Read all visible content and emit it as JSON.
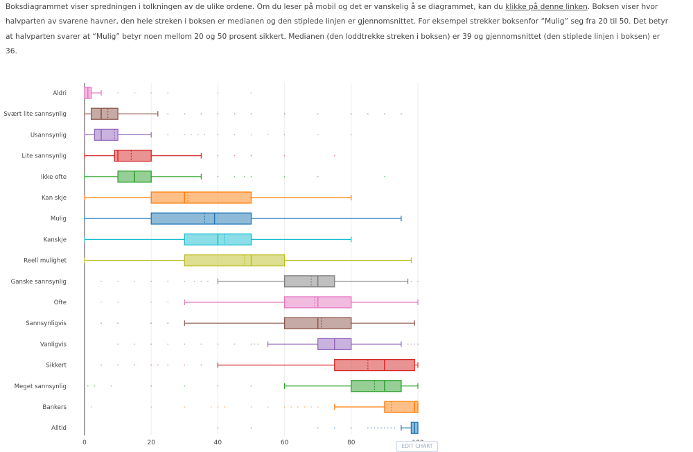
{
  "intro": {
    "text_before_link": "Boksdiagrammet viser spredningen i tolkningen av de ulike ordene. Om du leser på mobil og det er vanskelig å se diagrammet, kan du ",
    "link_text": "klikke på denne linken",
    "text_after_link": ". Boksen viser hvor halvparten av svarene havner, den hele streken i boksen er medianen og den stiplede linjen er gjennomsnittet.  For eksempel strekker boksenfor “Mulig” seg fra 20 til 50. Det betyr at halvparten svarer at “Mulig” betyr noen mellom 20 og 50 prosent sikkert. Medianen (den loddtrekke streken i boksen) er 39 og gjennomsnittet (den stiplede linjen i boksen) er 36."
  },
  "edit_button": "EDIT CHART",
  "chart_data": {
    "type": "box",
    "orientation": "horizontal",
    "xlim": [
      0,
      100
    ],
    "xticks": [
      0,
      20,
      40,
      60,
      80,
      100
    ],
    "grid": true,
    "series": [
      {
        "name": "Aldri",
        "color": "#e377c2",
        "min": 0,
        "q1": 0,
        "median": 1,
        "mean": 2,
        "q3": 2,
        "max": 5,
        "outliers": [
          10,
          15,
          20,
          25,
          40,
          50
        ]
      },
      {
        "name": "Svært lite sannsynlig",
        "color": "#8c564b",
        "min": 0,
        "q1": 2,
        "median": 5,
        "mean": 7,
        "q3": 10,
        "max": 22,
        "outliers": [
          25,
          30,
          35,
          40,
          45,
          50,
          60,
          70,
          80,
          85,
          90,
          95
        ]
      },
      {
        "name": "Usannsynlig",
        "color": "#9467bd",
        "min": 0,
        "q1": 3,
        "median": 5,
        "mean": 9,
        "q3": 10,
        "max": 20,
        "outliers": [
          25,
          30,
          32,
          34,
          36,
          40,
          45,
          50,
          55,
          60,
          70,
          80
        ]
      },
      {
        "name": "Lite sannsynlig",
        "color": "#d62728",
        "min": 0,
        "q1": 9,
        "median": 10,
        "mean": 14,
        "q3": 20,
        "max": 35,
        "outliers": [
          40,
          45,
          50,
          60,
          75
        ]
      },
      {
        "name": "Ikke ofte",
        "color": "#2ca02c",
        "min": 0,
        "q1": 10,
        "median": 15,
        "mean": 15,
        "q3": 20,
        "max": 35,
        "outliers": [
          40,
          45,
          48,
          50,
          60,
          70,
          90
        ]
      },
      {
        "name": "Kan skje",
        "color": "#ff7f0e",
        "min": 0,
        "q1": 20,
        "median": 30,
        "mean": 31,
        "q3": 50,
        "max": 80,
        "outliers": []
      },
      {
        "name": "Mulig",
        "color": "#1f77b4",
        "min": 0,
        "q1": 20,
        "median": 39,
        "mean": 36,
        "q3": 50,
        "max": 95,
        "outliers": []
      },
      {
        "name": "Kanskje",
        "color": "#17becf",
        "min": 0,
        "q1": 30,
        "median": 40,
        "mean": 42,
        "q3": 50,
        "max": 80,
        "outliers": []
      },
      {
        "name": "Reell mulighet",
        "color": "#bcbd22",
        "min": 0,
        "q1": 30,
        "median": 50,
        "mean": 48,
        "q3": 60,
        "max": 98,
        "outliers": []
      },
      {
        "name": "Ganske sannsynlig",
        "color": "#7f7f7f",
        "min": 40,
        "q1": 60,
        "median": 70,
        "mean": 68,
        "q3": 75,
        "max": 97,
        "outliers": [
          5,
          10,
          15,
          20,
          25,
          30,
          33,
          35,
          37,
          98,
          100
        ]
      },
      {
        "name": "Ofte",
        "color": "#e377c2",
        "min": 30,
        "q1": 60,
        "median": 70,
        "mean": 69,
        "q3": 80,
        "max": 100,
        "outliers": [
          5,
          10,
          20,
          25
        ]
      },
      {
        "name": "Sannsynligvis",
        "color": "#8c564b",
        "min": 30,
        "q1": 60,
        "median": 70,
        "mean": 71,
        "q3": 80,
        "max": 99,
        "outliers": [
          5,
          10,
          20,
          25
        ]
      },
      {
        "name": "Vanligvis",
        "color": "#9467bd",
        "min": 55,
        "q1": 70,
        "median": 75,
        "mean": 75,
        "q3": 80,
        "max": 95,
        "outliers": [
          10,
          15,
          20,
          25,
          30,
          35,
          40,
          45,
          50,
          51,
          52,
          97,
          98,
          99,
          100
        ]
      },
      {
        "name": "Sikkert",
        "color": "#d62728",
        "min": 40,
        "q1": 75,
        "median": 90,
        "mean": 85,
        "q3": 99,
        "max": 100,
        "outliers": [
          5,
          10,
          15,
          20,
          22,
          25,
          30,
          35
        ]
      },
      {
        "name": "Meget sannsynlig",
        "color": "#2ca02c",
        "min": 60,
        "q1": 80,
        "median": 90,
        "mean": 87,
        "q3": 95,
        "max": 100,
        "outliers": [
          1,
          3,
          8,
          20,
          30,
          40,
          50
        ]
      },
      {
        "name": "Bankers",
        "color": "#ff7f0e",
        "min": 75,
        "q1": 90,
        "median": 99,
        "mean": 92,
        "q3": 100,
        "max": 100,
        "outliers": [
          2,
          20,
          30,
          38,
          40,
          42,
          50,
          55,
          60,
          62,
          64,
          66,
          68,
          70
        ]
      },
      {
        "name": "Alltid",
        "color": "#1f77b4",
        "min": 95,
        "q1": 98,
        "median": 99,
        "mean": 99,
        "q3": 100,
        "max": 100,
        "outliers": [
          40,
          50,
          70,
          75,
          80,
          85,
          86,
          87,
          88,
          89,
          90,
          91,
          92,
          93
        ]
      }
    ]
  }
}
